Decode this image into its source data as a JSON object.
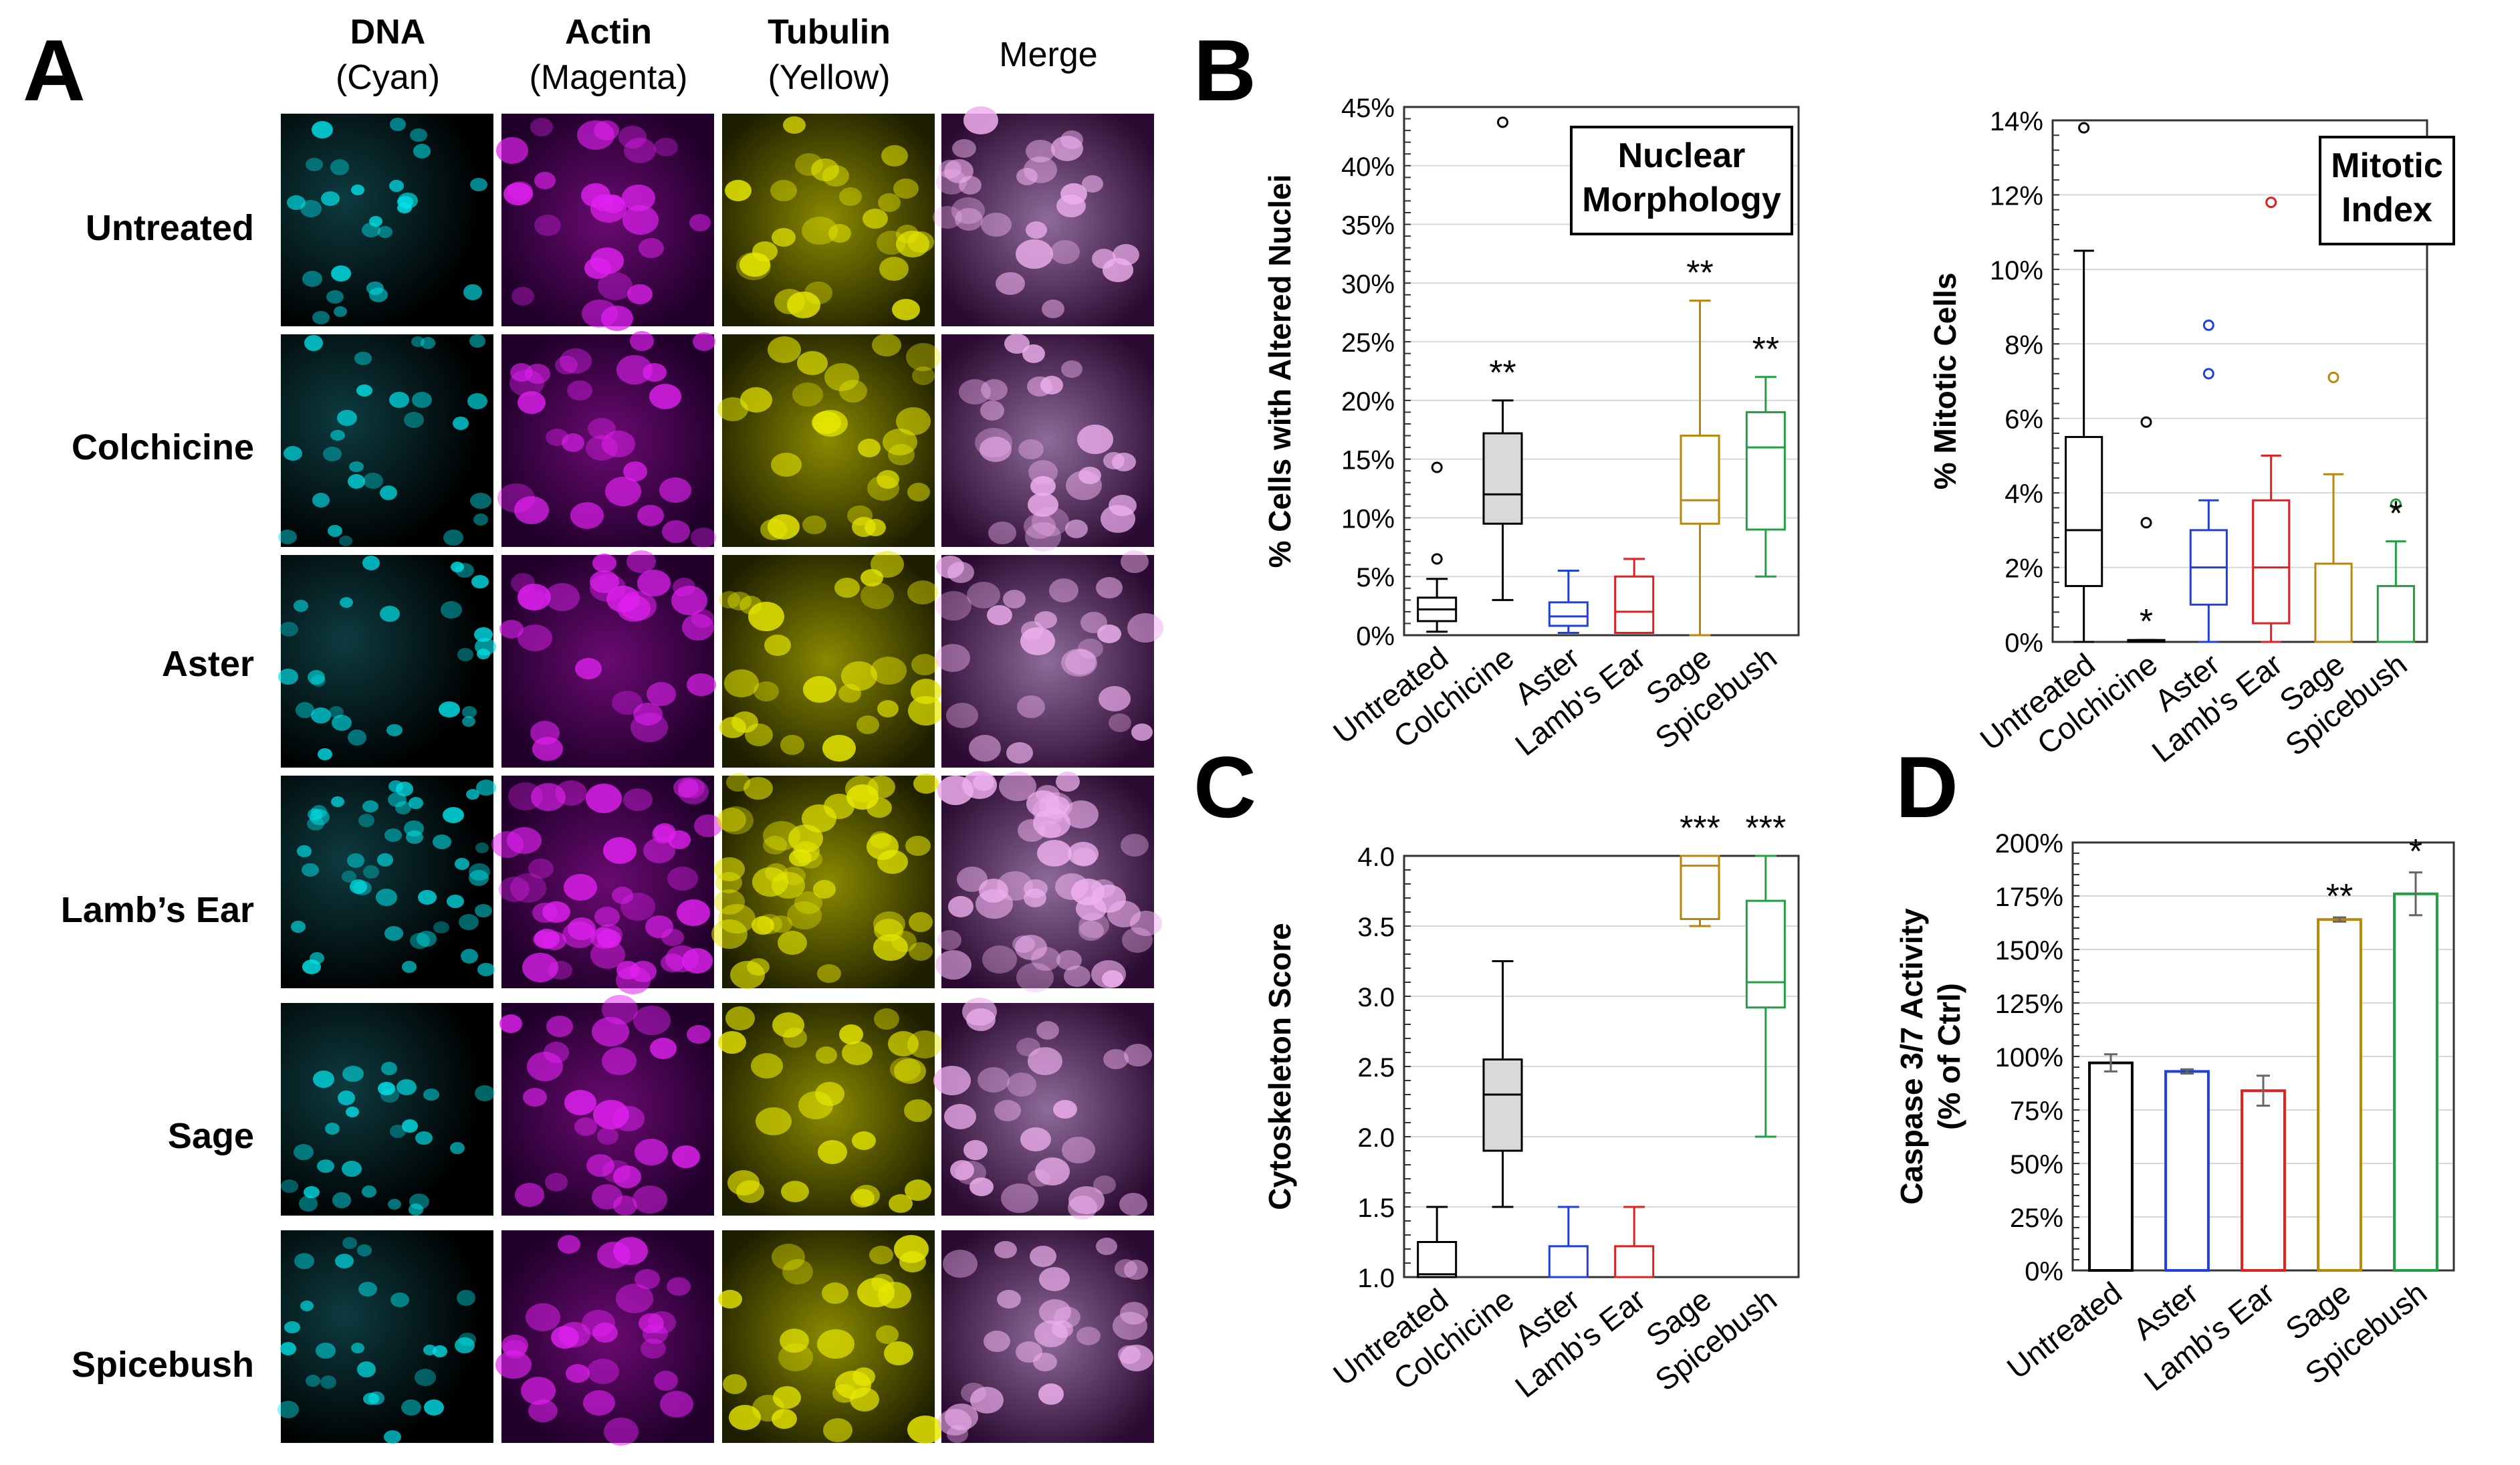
{
  "panels": {
    "a": "A",
    "b": "B",
    "c": "C",
    "d": "D"
  },
  "microscopy": {
    "columns": [
      {
        "title": "DNA",
        "sub": "(Cyan)",
        "tint": "#00e0e8"
      },
      {
        "title": "Actin",
        "sub": "(Magenta)",
        "tint": "#e020f0"
      },
      {
        "title": "Tubulin",
        "sub": "(Yellow)",
        "tint": "#e8e800"
      },
      {
        "title": "",
        "sub": "Merge",
        "tint": "#f0b0f0"
      }
    ],
    "rows": [
      "Untreated",
      "Colchicine",
      "Aster",
      "Lamb’s Ear",
      "Sage",
      "Spicebush"
    ]
  },
  "colors": {
    "Untreated": "#000000",
    "Colchicine": "#000000",
    "Aster": "#1f3fe0",
    "Lamb's Ear": "#e02020",
    "Sage": "#b8860b",
    "Spicebush": "#20a040"
  },
  "chart_data": [
    {
      "id": "nuclear",
      "type": "box",
      "title": "Nuclear Morphology",
      "ylabel": "% Cells with Altered Nuclei",
      "ylim": [
        0,
        45
      ],
      "yticks": [
        "0%",
        "5%",
        "10%",
        "15%",
        "20%",
        "25%",
        "30%",
        "35%",
        "40%",
        "45%"
      ],
      "categories": [
        "Untreated",
        "Colchicine",
        "Aster",
        "Lamb's Ear",
        "Sage",
        "Spicebush"
      ],
      "boxes": [
        {
          "min": 0.3,
          "q1": 1.2,
          "median": 2.2,
          "q3": 3.2,
          "max": 4.8,
          "outliers": [
            6.5,
            14.3
          ],
          "fill": "#ffffff",
          "sig": ""
        },
        {
          "min": 3.0,
          "q1": 9.5,
          "median": 12.0,
          "q3": 17.2,
          "max": 20.0,
          "outliers": [
            43.7
          ],
          "fill": "#d9d9d9",
          "sig": "**"
        },
        {
          "min": 0.2,
          "q1": 0.8,
          "median": 1.6,
          "q3": 2.8,
          "max": 5.5,
          "outliers": [],
          "fill": "#ffffff",
          "sig": ""
        },
        {
          "min": 0.2,
          "q1": 0.2,
          "median": 2.0,
          "q3": 5.0,
          "max": 6.5,
          "outliers": [],
          "fill": "#ffffff",
          "sig": ""
        },
        {
          "min": 0.0,
          "q1": 9.5,
          "median": 11.5,
          "q3": 17.0,
          "max": 28.5,
          "outliers": [],
          "fill": "#ffffff",
          "sig": "**"
        },
        {
          "min": 5.0,
          "q1": 9.0,
          "median": 16.0,
          "q3": 19.0,
          "max": 22.0,
          "outliers": [],
          "fill": "#ffffff",
          "sig": "**"
        }
      ]
    },
    {
      "id": "mitotic",
      "type": "box",
      "title": "Mitotic Index",
      "ylabel": "% Mitotic Cells",
      "ylim": [
        0,
        14
      ],
      "yticks": [
        "0%",
        "2%",
        "4%",
        "6%",
        "8%",
        "10%",
        "12%",
        "14%"
      ],
      "categories": [
        "Untreated",
        "Colchicine",
        "Aster",
        "Lamb's Ear",
        "Sage",
        "Spicebush"
      ],
      "boxes": [
        {
          "min": 0.0,
          "q1": 1.5,
          "median": 3.0,
          "q3": 5.5,
          "max": 10.5,
          "outliers": [
            13.8
          ],
          "fill": "#ffffff",
          "sig": ""
        },
        {
          "min": 0.0,
          "q1": 0.0,
          "median": 0.0,
          "q3": 0.05,
          "max": 0.05,
          "outliers": [
            3.2,
            5.9
          ],
          "fill": "#ffffff",
          "sig": "*"
        },
        {
          "min": 0.0,
          "q1": 1.0,
          "median": 2.0,
          "q3": 3.0,
          "max": 3.8,
          "outliers": [
            7.2,
            8.5
          ],
          "fill": "#ffffff",
          "sig": ""
        },
        {
          "min": 0.0,
          "q1": 0.5,
          "median": 2.0,
          "q3": 3.8,
          "max": 5.0,
          "outliers": [
            11.8
          ],
          "fill": "#ffffff",
          "sig": ""
        },
        {
          "min": 0.0,
          "q1": 0.0,
          "median": 0.0,
          "q3": 2.1,
          "max": 4.5,
          "outliers": [
            7.1
          ],
          "fill": "#ffffff",
          "sig": ""
        },
        {
          "min": 0.0,
          "q1": 0.0,
          "median": 0.0,
          "q3": 1.5,
          "max": 2.7,
          "outliers": [
            3.7
          ],
          "fill": "#ffffff",
          "sig": "*"
        }
      ]
    },
    {
      "id": "cyto",
      "type": "box",
      "title": "",
      "ylabel": "Cytoskeleton Score",
      "ylim": [
        1,
        4
      ],
      "yticks": [
        "1.0",
        "1.5",
        "2.0",
        "2.5",
        "3.0",
        "3.5",
        "4.0"
      ],
      "categories": [
        "Untreated",
        "Colchicine",
        "Aster",
        "Lamb's Ear",
        "Sage",
        "Spicebush"
      ],
      "boxes": [
        {
          "min": 1.0,
          "q1": 1.0,
          "median": 1.02,
          "q3": 1.25,
          "max": 1.5,
          "outliers": [],
          "fill": "#ffffff",
          "sig": ""
        },
        {
          "min": 1.5,
          "q1": 1.9,
          "median": 2.3,
          "q3": 2.55,
          "max": 3.25,
          "outliers": [],
          "fill": "#d9d9d9",
          "sig": ""
        },
        {
          "min": 1.0,
          "q1": 1.0,
          "median": 1.0,
          "q3": 1.22,
          "max": 1.5,
          "outliers": [],
          "fill": "#ffffff",
          "sig": ""
        },
        {
          "min": 1.0,
          "q1": 1.0,
          "median": 1.0,
          "q3": 1.22,
          "max": 1.5,
          "outliers": [],
          "fill": "#ffffff",
          "sig": ""
        },
        {
          "min": 3.5,
          "q1": 3.55,
          "median": 3.93,
          "q3": 4.0,
          "max": 4.0,
          "outliers": [],
          "fill": "#ffffff",
          "sig": "***"
        },
        {
          "min": 2.0,
          "q1": 2.92,
          "median": 3.1,
          "q3": 3.68,
          "max": 4.0,
          "outliers": [],
          "fill": "#ffffff",
          "sig": "***"
        }
      ]
    },
    {
      "id": "caspase",
      "type": "bar",
      "title": "",
      "ylabel": "Caspase 3/7 Activity",
      "ylabel2": "(% of Ctrl)",
      "ylim": [
        0,
        200
      ],
      "yticks": [
        "0%",
        "25%",
        "50%",
        "75%",
        "100%",
        "125%",
        "150%",
        "175%",
        "200%"
      ],
      "categories": [
        "Untreated",
        "Aster",
        "Lamb's Ear",
        "Sage",
        "Spicebush"
      ],
      "values": [
        97,
        93,
        84,
        164,
        176
      ],
      "errors": [
        4,
        1,
        7,
        1,
        10
      ],
      "sig": [
        "",
        "",
        "",
        "**",
        "*"
      ]
    }
  ]
}
